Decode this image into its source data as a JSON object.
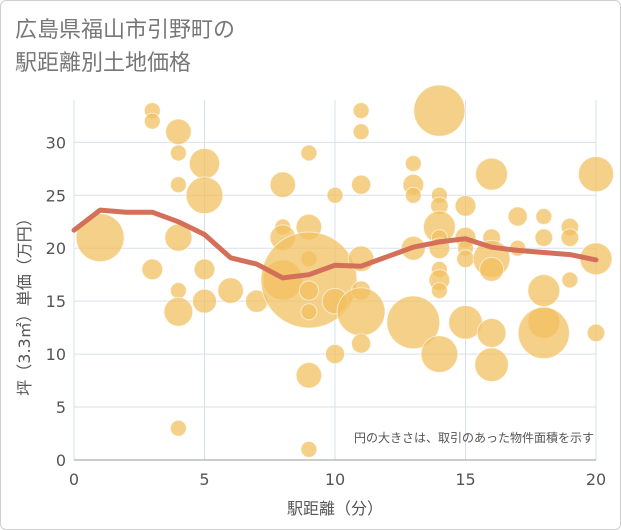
{
  "title": "広島県福山市引野町の\n駅距離別土地価格",
  "chart_data": {
    "type": "scatter",
    "title": "広島県福山市引野町の\n駅距離別土地価格",
    "xlabel": "駅距離（分）",
    "ylabel": "坪（3.3㎡）単価（万円）",
    "xlim": [
      0,
      20
    ],
    "ylim": [
      0,
      34
    ],
    "xticks": [
      "0",
      "5",
      "10",
      "15",
      "20"
    ],
    "yticks": [
      "0",
      "5",
      "10",
      "15",
      "20",
      "25",
      "30"
    ],
    "grid": true,
    "annotation": "円の大きさは、取引のあった物件面積を示す",
    "colors": {
      "bubble": "#f2c060",
      "line": "#d4705a",
      "grid": "#d7e0ea",
      "axis": "#555555"
    },
    "bubbles": [
      {
        "x": 1,
        "y": 21,
        "s": 3
      },
      {
        "x": 3,
        "y": 33,
        "s": 1
      },
      {
        "x": 3,
        "y": 32,
        "s": 1
      },
      {
        "x": 3,
        "y": 18,
        "s": 1.3
      },
      {
        "x": 4,
        "y": 31,
        "s": 1.6
      },
      {
        "x": 4,
        "y": 29,
        "s": 1
      },
      {
        "x": 4,
        "y": 26,
        "s": 1
      },
      {
        "x": 4,
        "y": 21,
        "s": 1.7
      },
      {
        "x": 4,
        "y": 16,
        "s": 1
      },
      {
        "x": 4,
        "y": 14,
        "s": 1.8
      },
      {
        "x": 4,
        "y": 3,
        "s": 1
      },
      {
        "x": 5,
        "y": 28,
        "s": 1.9
      },
      {
        "x": 5,
        "y": 25,
        "s": 2.3
      },
      {
        "x": 5,
        "y": 18,
        "s": 1.3
      },
      {
        "x": 5,
        "y": 15,
        "s": 1.5
      },
      {
        "x": 6,
        "y": 16,
        "s": 1.6
      },
      {
        "x": 7,
        "y": 15,
        "s": 1.4
      },
      {
        "x": 8,
        "y": 26,
        "s": 1.6
      },
      {
        "x": 8,
        "y": 22,
        "s": 1
      },
      {
        "x": 8,
        "y": 21,
        "s": 1.6
      },
      {
        "x": 8,
        "y": 17,
        "s": 2.5
      },
      {
        "x": 9,
        "y": 29,
        "s": 1
      },
      {
        "x": 9,
        "y": 22,
        "s": 1.6
      },
      {
        "x": 9,
        "y": 19,
        "s": 1
      },
      {
        "x": 9,
        "y": 17,
        "s": 6
      },
      {
        "x": 9,
        "y": 16,
        "s": 1.2
      },
      {
        "x": 9,
        "y": 14,
        "s": 1
      },
      {
        "x": 9,
        "y": 8,
        "s": 1.6
      },
      {
        "x": 9,
        "y": 1,
        "s": 1
      },
      {
        "x": 10,
        "y": 25,
        "s": 1
      },
      {
        "x": 10,
        "y": 15,
        "s": 1.6
      },
      {
        "x": 10,
        "y": 10,
        "s": 1.2
      },
      {
        "x": 11,
        "y": 33,
        "s": 1
      },
      {
        "x": 11,
        "y": 31,
        "s": 1
      },
      {
        "x": 11,
        "y": 26,
        "s": 1.2
      },
      {
        "x": 11,
        "y": 19,
        "s": 1.6
      },
      {
        "x": 11,
        "y": 16,
        "s": 1.2
      },
      {
        "x": 11,
        "y": 14,
        "s": 3
      },
      {
        "x": 11,
        "y": 11,
        "s": 1.2
      },
      {
        "x": 13,
        "y": 28,
        "s": 1
      },
      {
        "x": 13,
        "y": 26,
        "s": 1.3
      },
      {
        "x": 13,
        "y": 25,
        "s": 1
      },
      {
        "x": 13,
        "y": 20,
        "s": 1.5
      },
      {
        "x": 13,
        "y": 13,
        "s": 3.3
      },
      {
        "x": 14,
        "y": 33,
        "s": 3.2
      },
      {
        "x": 14,
        "y": 25,
        "s": 1
      },
      {
        "x": 14,
        "y": 24,
        "s": 1.1
      },
      {
        "x": 14,
        "y": 22,
        "s": 2
      },
      {
        "x": 14,
        "y": 21,
        "s": 1
      },
      {
        "x": 14,
        "y": 20,
        "s": 1.3
      },
      {
        "x": 14,
        "y": 18,
        "s": 1
      },
      {
        "x": 14,
        "y": 17,
        "s": 1.3
      },
      {
        "x": 14,
        "y": 16,
        "s": 1
      },
      {
        "x": 14,
        "y": 10,
        "s": 2.3
      },
      {
        "x": 15,
        "y": 24,
        "s": 1.3
      },
      {
        "x": 15,
        "y": 21,
        "s": 1.3
      },
      {
        "x": 15,
        "y": 20,
        "s": 1
      },
      {
        "x": 15,
        "y": 19,
        "s": 1.1
      },
      {
        "x": 15,
        "y": 13,
        "s": 2.1
      },
      {
        "x": 16,
        "y": 27,
        "s": 2
      },
      {
        "x": 16,
        "y": 21,
        "s": 1.1
      },
      {
        "x": 16,
        "y": 19,
        "s": 2.3
      },
      {
        "x": 16,
        "y": 18,
        "s": 1.5
      },
      {
        "x": 16,
        "y": 12,
        "s": 1.8
      },
      {
        "x": 16,
        "y": 9,
        "s": 2.1
      },
      {
        "x": 17,
        "y": 23,
        "s": 1.2
      },
      {
        "x": 17,
        "y": 20,
        "s": 1
      },
      {
        "x": 18,
        "y": 23,
        "s": 1
      },
      {
        "x": 18,
        "y": 21,
        "s": 1.1
      },
      {
        "x": 18,
        "y": 16,
        "s": 2
      },
      {
        "x": 18,
        "y": 13,
        "s": 2
      },
      {
        "x": 18,
        "y": 12,
        "s": 3.2
      },
      {
        "x": 19,
        "y": 22,
        "s": 1.1
      },
      {
        "x": 19,
        "y": 21,
        "s": 1.1
      },
      {
        "x": 19,
        "y": 17,
        "s": 1
      },
      {
        "x": 20,
        "y": 27,
        "s": 2.2
      },
      {
        "x": 20,
        "y": 19,
        "s": 2
      },
      {
        "x": 20,
        "y": 12,
        "s": 1.1
      }
    ],
    "series": [
      {
        "type": "line",
        "x": [
          0,
          1,
          2,
          3,
          4,
          5,
          6,
          7,
          8,
          9,
          10,
          11,
          12,
          13,
          14,
          15,
          16,
          17,
          18,
          19,
          20
        ],
        "y": [
          21.7,
          23.6,
          23.4,
          23.4,
          22.5,
          21.3,
          19.1,
          18.5,
          17.2,
          17.5,
          18.4,
          18.3,
          19.2,
          20.1,
          20.6,
          20.9,
          20.1,
          19.8,
          19.6,
          19.4,
          18.9
        ]
      }
    ]
  }
}
